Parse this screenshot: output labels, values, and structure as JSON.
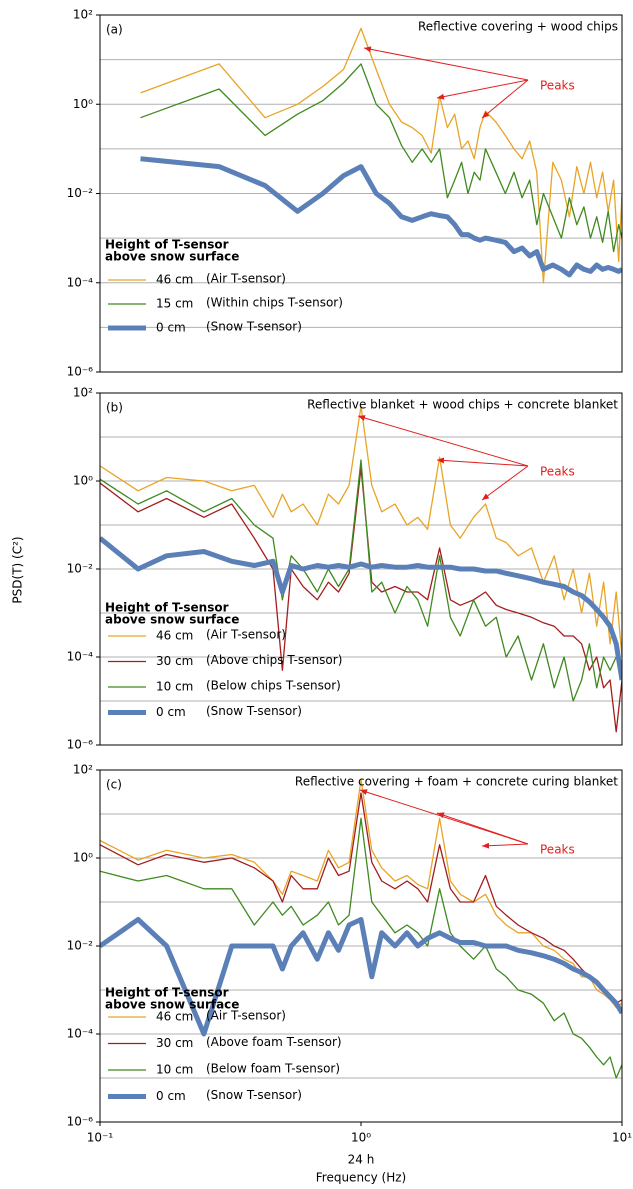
{
  "figure": {
    "ylabel": "PSD(T) (C²)",
    "xlabel": "Frequency (Hz)",
    "x_annotation": "24 h"
  },
  "chart_data": [
    {
      "type": "line",
      "panel": "(a)",
      "title": "Reflective covering + wood chips",
      "annotation": "Peaks",
      "legend_title": [
        "Height of T-sensor",
        "above snow surface"
      ],
      "log_x": true,
      "log_y": true,
      "xlim": [
        0.1,
        10
      ],
      "ylim": [
        1e-06,
        100
      ],
      "yticks": [
        {
          "value": 1e-06,
          "label": "10⁻⁶"
        },
        {
          "value": 0.0001,
          "label": "10⁻⁴"
        },
        {
          "value": 0.01,
          "label": "10⁻²"
        },
        {
          "value": 1,
          "label": "10⁰"
        },
        {
          "value": 100,
          "label": "10²"
        }
      ],
      "minor_grid": [
        1e-05,
        0.001,
        0.1,
        10
      ],
      "x": [
        0.143,
        0.286,
        0.429,
        0.571,
        0.714,
        0.857,
        1.0,
        1.143,
        1.286,
        1.429,
        1.571,
        1.714,
        1.857,
        2.0,
        2.143,
        2.286,
        2.429,
        2.571,
        2.714,
        2.857,
        3.0,
        3.286,
        3.571,
        3.857,
        4.143,
        4.429,
        4.714,
        5.0,
        5.429,
        5.857,
        6.286,
        6.714,
        7.143,
        7.571,
        8.0,
        8.429,
        8.857,
        9.286,
        9.714,
        10.0
      ],
      "series": [
        {
          "name": "46 cm",
          "note": "(Air T-sensor)",
          "color": "#e8a427",
          "width": 1.3,
          "values": [
            1.8,
            8,
            0.5,
            1.0,
            2.5,
            6,
            50,
            6,
            1.0,
            0.4,
            0.3,
            0.2,
            0.08,
            1.5,
            0.3,
            0.6,
            0.1,
            0.15,
            0.06,
            0.3,
            0.7,
            0.4,
            0.2,
            0.1,
            0.06,
            0.15,
            0.03,
            0.0001,
            0.05,
            0.02,
            0.003,
            0.04,
            0.01,
            0.05,
            0.008,
            0.03,
            0.004,
            0.02,
            0.0003,
            0.01
          ]
        },
        {
          "name": "15 cm",
          "note": "(Within chips T-sensor)",
          "color": "#3f8a1f",
          "width": 1.3,
          "values": [
            0.5,
            2.2,
            0.2,
            0.6,
            1.2,
            3,
            8,
            1.0,
            0.5,
            0.12,
            0.05,
            0.1,
            0.05,
            0.1,
            0.008,
            0.02,
            0.05,
            0.01,
            0.03,
            0.02,
            0.1,
            0.03,
            0.01,
            0.03,
            0.008,
            0.02,
            0.002,
            0.01,
            0.003,
            0.001,
            0.008,
            0.002,
            0.005,
            0.001,
            0.003,
            0.0008,
            0.004,
            0.0005,
            0.002,
            0.001
          ]
        },
        {
          "name": "0 cm",
          "note": "(Snow T-sensor)",
          "color": "#5b80b8",
          "width": 5,
          "values": [
            0.06,
            0.04,
            0.015,
            0.004,
            0.01,
            0.025,
            0.04,
            0.01,
            0.006,
            0.003,
            0.0025,
            0.003,
            0.0035,
            0.0032,
            0.003,
            0.002,
            0.0012,
            0.0012,
            0.001,
            0.0009,
            0.001,
            0.0009,
            0.0008,
            0.0005,
            0.0006,
            0.0004,
            0.0005,
            0.0002,
            0.00025,
            0.0002,
            0.00015,
            0.00025,
            0.0002,
            0.00018,
            0.00025,
            0.0002,
            0.00022,
            0.0002,
            0.00018,
            0.0002
          ]
        }
      ]
    },
    {
      "type": "line",
      "panel": "(b)",
      "title": "Reflective blanket + wood chips + concrete blanket",
      "annotation": "Peaks",
      "legend_title": [
        "Height of T-sensor",
        "above snow surface"
      ],
      "log_x": true,
      "log_y": true,
      "xlim": [
        0.1,
        10
      ],
      "ylim": [
        1e-06,
        100
      ],
      "yticks": [
        {
          "value": 1e-06,
          "label": "10⁻⁶"
        },
        {
          "value": 0.0001,
          "label": "10⁻⁴"
        },
        {
          "value": 0.01,
          "label": "10⁻²"
        },
        {
          "value": 1,
          "label": "10⁰"
        },
        {
          "value": 100,
          "label": "10²"
        }
      ],
      "minor_grid": [
        1e-05,
        0.001,
        0.1,
        10
      ],
      "x": [
        0.1,
        0.14,
        0.18,
        0.25,
        0.32,
        0.39,
        0.46,
        0.5,
        0.54,
        0.6,
        0.68,
        0.75,
        0.82,
        0.9,
        1.0,
        1.1,
        1.2,
        1.35,
        1.5,
        1.65,
        1.8,
        2.0,
        2.2,
        2.4,
        2.7,
        3.0,
        3.3,
        3.6,
        4.0,
        4.5,
        5.0,
        5.5,
        6.0,
        6.5,
        7.0,
        7.5,
        8.0,
        8.5,
        9.0,
        9.5,
        10.0
      ],
      "series": [
        {
          "name": "46 cm",
          "note": "(Air T-sensor)",
          "color": "#e8a427",
          "width": 1.3,
          "values": [
            2.2,
            0.6,
            1.2,
            1.0,
            0.6,
            0.8,
            0.15,
            0.5,
            0.2,
            0.3,
            0.1,
            0.5,
            0.3,
            0.8,
            50,
            0.8,
            0.2,
            0.3,
            0.1,
            0.15,
            0.08,
            3.5,
            0.1,
            0.05,
            0.15,
            0.3,
            0.05,
            0.04,
            0.02,
            0.03,
            0.005,
            0.02,
            0.002,
            0.01,
            0.001,
            0.008,
            0.0005,
            0.005,
            0.0002,
            0.003,
            0.0001
          ]
        },
        {
          "name": "30 cm",
          "note": "(Above chips T-sensor)",
          "color": "#a31d1d",
          "width": 1.3,
          "values": [
            0.9,
            0.2,
            0.4,
            0.15,
            0.3,
            0.05,
            0.01,
            5e-05,
            0.01,
            0.004,
            0.002,
            0.005,
            0.003,
            0.008,
            2,
            0.005,
            0.003,
            0.004,
            0.003,
            0.003,
            0.002,
            0.03,
            0.002,
            0.0015,
            0.002,
            0.003,
            0.0015,
            0.0012,
            0.001,
            0.0008,
            0.0006,
            0.0005,
            0.0003,
            0.0003,
            0.0002,
            5e-05,
            0.0001,
            2e-05,
            3e-05,
            2e-06,
            3e-05
          ]
        },
        {
          "name": "10 cm",
          "note": "(Below chips T-sensor)",
          "color": "#3f8a1f",
          "width": 1.3,
          "values": [
            1.1,
            0.3,
            0.6,
            0.2,
            0.4,
            0.1,
            0.05,
            0.002,
            0.02,
            0.01,
            0.003,
            0.01,
            0.004,
            0.01,
            3,
            0.003,
            0.005,
            0.001,
            0.004,
            0.002,
            0.0005,
            0.02,
            0.0008,
            0.0003,
            0.002,
            0.0005,
            0.0008,
            0.0001,
            0.0003,
            3e-05,
            0.0002,
            2e-05,
            0.0001,
            1e-05,
            3e-05,
            0.0002,
            2e-05,
            0.0001,
            5e-05,
            0.0001,
            5e-05
          ]
        },
        {
          "name": "0 cm",
          "note": "(Snow T-sensor)",
          "color": "#5b80b8",
          "width": 5,
          "values": [
            0.05,
            0.01,
            0.02,
            0.025,
            0.015,
            0.012,
            0.015,
            0.003,
            0.012,
            0.01,
            0.012,
            0.011,
            0.012,
            0.011,
            0.013,
            0.011,
            0.012,
            0.011,
            0.011,
            0.012,
            0.011,
            0.011,
            0.011,
            0.01,
            0.01,
            0.009,
            0.009,
            0.008,
            0.007,
            0.006,
            0.005,
            0.0045,
            0.004,
            0.003,
            0.0025,
            0.0018,
            0.0012,
            0.0008,
            0.0005,
            0.0002,
            3e-05
          ]
        }
      ]
    },
    {
      "type": "line",
      "panel": "(c)",
      "title": "Reflective covering +  foam + concrete curing blanket",
      "annotation": "Peaks",
      "legend_title": [
        "Height of T-sensor",
        "above snow surface"
      ],
      "log_x": true,
      "log_y": true,
      "xlim": [
        0.1,
        10
      ],
      "ylim": [
        1e-06,
        100
      ],
      "yticks": [
        {
          "value": 1e-06,
          "label": "10⁻⁶"
        },
        {
          "value": 0.0001,
          "label": "10⁻⁴"
        },
        {
          "value": 0.01,
          "label": "10⁻²"
        },
        {
          "value": 1,
          "label": "10⁰"
        },
        {
          "value": 100,
          "label": "10²"
        }
      ],
      "xticks": [
        {
          "value": 0.1,
          "label": "10⁻¹"
        },
        {
          "value": 1,
          "label": "10⁰"
        },
        {
          "value": 10,
          "label": "10¹"
        }
      ],
      "minor_grid": [
        1e-05,
        0.001,
        0.1,
        10
      ],
      "x": [
        0.1,
        0.14,
        0.18,
        0.25,
        0.32,
        0.39,
        0.46,
        0.5,
        0.54,
        0.6,
        0.68,
        0.75,
        0.82,
        0.9,
        1.0,
        1.1,
        1.2,
        1.35,
        1.5,
        1.65,
        1.8,
        2.0,
        2.2,
        2.4,
        2.7,
        3.0,
        3.3,
        3.6,
        4.0,
        4.5,
        5.0,
        5.5,
        6.0,
        6.5,
        7.0,
        7.5,
        8.0,
        8.5,
        9.0,
        9.5,
        10.0
      ],
      "series": [
        {
          "name": "46 cm",
          "note": "(Air T-sensor)",
          "color": "#e8a427",
          "width": 1.3,
          "values": [
            2.5,
            0.9,
            1.5,
            1.0,
            1.2,
            0.8,
            0.3,
            0.15,
            0.5,
            0.4,
            0.3,
            1.5,
            0.6,
            0.8,
            60,
            1.5,
            0.6,
            0.3,
            0.4,
            0.25,
            0.2,
            8,
            0.3,
            0.15,
            0.1,
            0.15,
            0.05,
            0.03,
            0.02,
            0.02,
            0.01,
            0.008,
            0.005,
            0.004,
            0.002,
            0.002,
            0.001,
            0.0008,
            0.0006,
            0.0004,
            0.0005
          ]
        },
        {
          "name": "30 cm",
          "note": "(Above foam T-sensor)",
          "color": "#a31d1d",
          "width": 1.3,
          "values": [
            2.0,
            0.7,
            1.2,
            0.8,
            1.0,
            0.6,
            0.3,
            0.1,
            0.4,
            0.2,
            0.2,
            1.0,
            0.4,
            0.5,
            30,
            0.8,
            0.3,
            0.2,
            0.3,
            0.2,
            0.1,
            2,
            0.2,
            0.1,
            0.1,
            0.4,
            0.08,
            0.05,
            0.03,
            0.02,
            0.015,
            0.01,
            0.008,
            0.005,
            0.003,
            0.002,
            0.0015,
            0.001,
            0.0008,
            0.0005,
            0.0006
          ]
        },
        {
          "name": "10 cm",
          "note": "(Below foam T-sensor)",
          "color": "#3f8a1f",
          "width": 1.3,
          "values": [
            0.5,
            0.3,
            0.4,
            0.2,
            0.2,
            0.03,
            0.1,
            0.05,
            0.08,
            0.03,
            0.05,
            0.1,
            0.03,
            0.05,
            8,
            0.1,
            0.05,
            0.02,
            0.03,
            0.02,
            0.01,
            0.2,
            0.02,
            0.01,
            0.005,
            0.01,
            0.003,
            0.002,
            0.001,
            0.0008,
            0.0005,
            0.0002,
            0.0003,
            0.0001,
            8e-05,
            5e-05,
            3e-05,
            2e-05,
            3e-05,
            1e-05,
            2e-05
          ]
        },
        {
          "name": "0 cm",
          "note": "(Snow T-sensor)",
          "color": "#5b80b8",
          "width": 5,
          "values": [
            0.01,
            0.04,
            0.01,
            0.0001,
            0.01,
            0.01,
            0.01,
            0.003,
            0.01,
            0.02,
            0.005,
            0.02,
            0.008,
            0.03,
            0.04,
            0.002,
            0.02,
            0.01,
            0.02,
            0.01,
            0.015,
            0.02,
            0.015,
            0.012,
            0.012,
            0.01,
            0.01,
            0.01,
            0.008,
            0.007,
            0.006,
            0.005,
            0.004,
            0.003,
            0.0025,
            0.002,
            0.0015,
            0.001,
            0.0007,
            0.0005,
            0.0003
          ]
        }
      ]
    }
  ]
}
